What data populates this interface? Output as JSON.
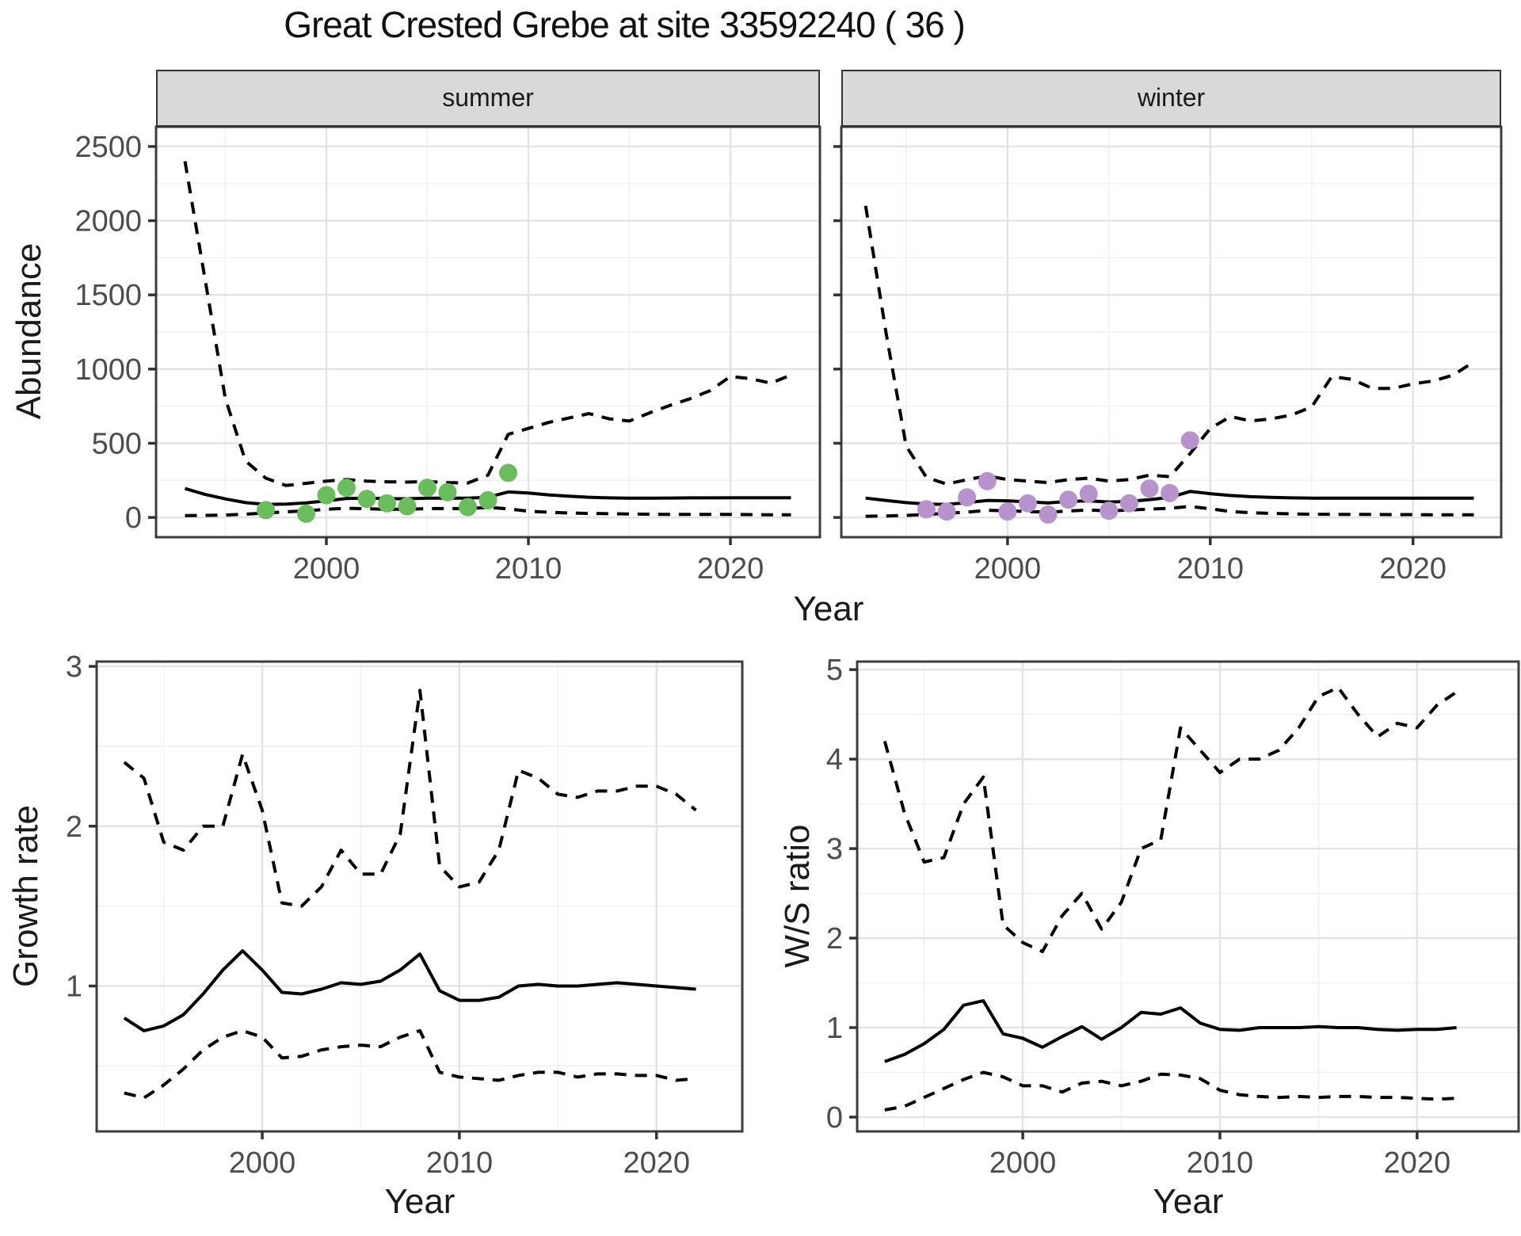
{
  "title": "Great Crested Grebe at site 33592240 ( 36 )",
  "facets": {
    "summer_label": "summer",
    "winter_label": "winter"
  },
  "axis_titles": {
    "top_x": "Year",
    "top_y": "Abundance",
    "growth_y": "Growth rate",
    "growth_x": "Year",
    "ws_y": "W/S ratio",
    "ws_x": "Year"
  },
  "colors": {
    "summer_points": "#6abd5c",
    "winter_points": "#b793ce",
    "line": "#000000",
    "grid_major": "#e3e3e3",
    "grid_minor": "#f1f1f1",
    "strip_bg": "#d9d9d9",
    "panel_border": "#3c3c3c",
    "tick_text": "#4d4d4d",
    "panel_bg": "#ffffff"
  },
  "chart_data": [
    {
      "id": "abundance-summer",
      "type": "line",
      "facet": "summer",
      "xlabel": "Year",
      "ylabel": "Abundance",
      "xlim": [
        1991.57,
        2024.43
      ],
      "ylim": [
        -133,
        2633
      ],
      "xticks": [
        2000,
        2010,
        2020
      ],
      "yticks": [
        0,
        500,
        1000,
        1500,
        2000,
        2500
      ],
      "x_minor": [
        1995,
        2005,
        2015
      ],
      "y_minor": [
        250,
        750,
        1250,
        1750,
        2250
      ],
      "show_ytick_labels": true,
      "x": [
        1993,
        1994,
        1995,
        1996,
        1997,
        1998,
        1999,
        2000,
        2001,
        2002,
        2003,
        2004,
        2005,
        2006,
        2007,
        2008,
        2009,
        2010,
        2011,
        2012,
        2013,
        2014,
        2015,
        2016,
        2017,
        2018,
        2019,
        2020,
        2021,
        2022,
        2023
      ],
      "series": [
        {
          "name": "upper-ci",
          "style": "dashed",
          "values": [
            2400,
            1600,
            800,
            380,
            265,
            215,
            230,
            245,
            255,
            245,
            240,
            238,
            242,
            235,
            232,
            285,
            560,
            600,
            640,
            670,
            700,
            665,
            650,
            705,
            755,
            800,
            855,
            950,
            935,
            905,
            960
          ]
        },
        {
          "name": "median",
          "style": "solid",
          "values": [
            195,
            155,
            125,
            100,
            88,
            90,
            98,
            112,
            128,
            130,
            127,
            126,
            130,
            130,
            130,
            136,
            172,
            165,
            152,
            143,
            136,
            132,
            130,
            130,
            131,
            132,
            132,
            133,
            133,
            133,
            133
          ]
        },
        {
          "name": "lower-ci",
          "style": "dashed",
          "values": [
            12,
            14,
            16,
            22,
            30,
            38,
            45,
            55,
            62,
            58,
            55,
            55,
            60,
            60,
            60,
            68,
            58,
            42,
            35,
            30,
            27,
            25,
            23,
            22,
            21,
            20,
            20,
            20,
            19,
            18,
            18
          ]
        }
      ],
      "points": {
        "name": "observed-counts-summer",
        "color": "#6abd5c",
        "x": [
          1997,
          1999,
          2000,
          2001,
          2002,
          2003,
          2004,
          2005,
          2006,
          2007,
          2008,
          2009
        ],
        "y": [
          50,
          25,
          150,
          200,
          125,
          95,
          75,
          200,
          170,
          70,
          115,
          300
        ]
      }
    },
    {
      "id": "abundance-winter",
      "type": "line",
      "facet": "winter",
      "xlabel": "Year",
      "ylabel": "Abundance",
      "xlim": [
        1991.8,
        2024.35
      ],
      "ylim": [
        -133,
        2633
      ],
      "xticks": [
        2000,
        2010,
        2020
      ],
      "yticks": [
        0,
        500,
        1000,
        1500,
        2000,
        2500
      ],
      "x_minor": [
        1995,
        2005,
        2015
      ],
      "y_minor": [
        250,
        750,
        1250,
        1750,
        2250
      ],
      "show_ytick_labels": false,
      "x": [
        1993,
        1994,
        1995,
        1996,
        1997,
        1998,
        1999,
        2000,
        2001,
        2002,
        2003,
        2004,
        2005,
        2006,
        2007,
        2008,
        2009,
        2010,
        2011,
        2012,
        2013,
        2014,
        2015,
        2016,
        2017,
        2018,
        2019,
        2020,
        2021,
        2022,
        2023
      ],
      "series": [
        {
          "name": "upper-ci",
          "style": "dashed",
          "values": [
            2100,
            1250,
            480,
            270,
            225,
            255,
            280,
            255,
            245,
            235,
            255,
            265,
            245,
            255,
            285,
            275,
            430,
            600,
            680,
            650,
            665,
            690,
            745,
            950,
            930,
            870,
            870,
            900,
            920,
            960,
            1050
          ]
        },
        {
          "name": "median",
          "style": "solid",
          "values": [
            130,
            115,
            100,
            90,
            88,
            100,
            115,
            112,
            105,
            98,
            108,
            112,
            104,
            108,
            120,
            135,
            175,
            160,
            148,
            140,
            135,
            132,
            130,
            130,
            130,
            130,
            130,
            130,
            130,
            130,
            130
          ]
        },
        {
          "name": "lower-ci",
          "style": "dashed",
          "values": [
            8,
            10,
            14,
            20,
            28,
            36,
            48,
            45,
            40,
            36,
            44,
            50,
            44,
            50,
            56,
            62,
            74,
            58,
            40,
            32,
            27,
            24,
            22,
            21,
            20,
            20,
            19,
            19,
            18,
            18,
            18
          ]
        }
      ],
      "points": {
        "name": "observed-counts-winter",
        "color": "#b793ce",
        "x": [
          1996,
          1997,
          1998,
          1999,
          2000,
          2001,
          2002,
          2003,
          2004,
          2005,
          2006,
          2007,
          2008,
          2009
        ],
        "y": [
          55,
          40,
          135,
          245,
          40,
          95,
          20,
          120,
          160,
          45,
          95,
          195,
          165,
          520
        ]
      }
    },
    {
      "id": "growth-rate",
      "type": "line",
      "xlabel": "Year",
      "ylabel": "Growth rate",
      "xlim": [
        1991.6,
        2024.35
      ],
      "ylim": [
        0.09,
        3.03
      ],
      "xticks": [
        2000,
        2010,
        2020
      ],
      "yticks": [
        1,
        2,
        3
      ],
      "x_minor": [
        1995,
        2005,
        2015
      ],
      "y_minor": [
        0.5,
        1.5,
        2.5
      ],
      "show_ytick_labels": true,
      "x": [
        1993,
        1994,
        1995,
        1996,
        1997,
        1998,
        1999,
        2000,
        2001,
        2002,
        2003,
        2004,
        2005,
        2006,
        2007,
        2008,
        2009,
        2010,
        2011,
        2012,
        2013,
        2014,
        2015,
        2016,
        2017,
        2018,
        2019,
        2020,
        2021,
        2022
      ],
      "series": [
        {
          "name": "upper-ci",
          "style": "dashed",
          "values": [
            2.4,
            2.3,
            1.9,
            1.85,
            2.0,
            2.0,
            2.45,
            2.1,
            1.52,
            1.5,
            1.62,
            1.85,
            1.7,
            1.7,
            1.95,
            2.85,
            1.75,
            1.62,
            1.65,
            1.85,
            2.35,
            2.3,
            2.2,
            2.18,
            2.22,
            2.22,
            2.25,
            2.25,
            2.2,
            2.1
          ]
        },
        {
          "name": "median",
          "style": "solid",
          "values": [
            0.8,
            0.72,
            0.75,
            0.82,
            0.95,
            1.1,
            1.22,
            1.1,
            0.96,
            0.95,
            0.98,
            1.02,
            1.01,
            1.03,
            1.1,
            1.2,
            0.97,
            0.91,
            0.91,
            0.93,
            1.0,
            1.01,
            1.0,
            1.0,
            1.01,
            1.02,
            1.01,
            1.0,
            0.99,
            0.98
          ]
        },
        {
          "name": "lower-ci",
          "style": "dashed",
          "values": [
            0.33,
            0.3,
            0.38,
            0.48,
            0.6,
            0.68,
            0.72,
            0.68,
            0.55,
            0.56,
            0.6,
            0.62,
            0.63,
            0.62,
            0.68,
            0.72,
            0.46,
            0.43,
            0.42,
            0.41,
            0.44,
            0.46,
            0.46,
            0.43,
            0.45,
            0.45,
            0.44,
            0.44,
            0.41,
            0.42
          ]
        }
      ]
    },
    {
      "id": "ws-ratio",
      "type": "line",
      "xlabel": "Year",
      "ylabel": "W/S ratio",
      "xlim": [
        1991.6,
        2025.15
      ],
      "ylim": [
        -0.16,
        5.09
      ],
      "xticks": [
        2000,
        2010,
        2020
      ],
      "yticks": [
        0,
        1,
        2,
        3,
        4,
        5
      ],
      "x_minor": [
        1995,
        2005,
        2015
      ],
      "y_minor": [
        0.5,
        1.5,
        2.5,
        3.5,
        4.5
      ],
      "show_ytick_labels": true,
      "x": [
        1993,
        1994,
        1995,
        1996,
        1997,
        1998,
        1999,
        2000,
        2001,
        2002,
        2003,
        2004,
        2005,
        2006,
        2007,
        2008,
        2009,
        2010,
        2011,
        2012,
        2013,
        2014,
        2015,
        2016,
        2017,
        2018,
        2019,
        2020,
        2021,
        2022
      ],
      "series": [
        {
          "name": "upper-ci",
          "style": "dashed",
          "values": [
            4.2,
            3.4,
            2.85,
            2.9,
            3.5,
            3.8,
            2.15,
            1.95,
            1.85,
            2.25,
            2.5,
            2.1,
            2.4,
            3.0,
            3.1,
            4.35,
            4.1,
            3.85,
            4.0,
            4.0,
            4.1,
            4.35,
            4.7,
            4.8,
            4.5,
            4.25,
            4.4,
            4.35,
            4.6,
            4.75
          ]
        },
        {
          "name": "median",
          "style": "solid",
          "values": [
            0.62,
            0.7,
            0.82,
            0.98,
            1.25,
            1.3,
            0.93,
            0.88,
            0.78,
            0.9,
            1.01,
            0.87,
            1.0,
            1.17,
            1.15,
            1.22,
            1.05,
            0.98,
            0.97,
            1.0,
            1.0,
            1.0,
            1.01,
            1.0,
            1.0,
            0.98,
            0.97,
            0.98,
            0.98,
            1.0
          ]
        },
        {
          "name": "lower-ci",
          "style": "dashed",
          "values": [
            0.08,
            0.12,
            0.22,
            0.32,
            0.42,
            0.5,
            0.45,
            0.35,
            0.35,
            0.28,
            0.38,
            0.4,
            0.35,
            0.4,
            0.48,
            0.47,
            0.43,
            0.3,
            0.25,
            0.23,
            0.22,
            0.23,
            0.22,
            0.23,
            0.23,
            0.22,
            0.22,
            0.21,
            0.2,
            0.21
          ]
        }
      ]
    }
  ]
}
